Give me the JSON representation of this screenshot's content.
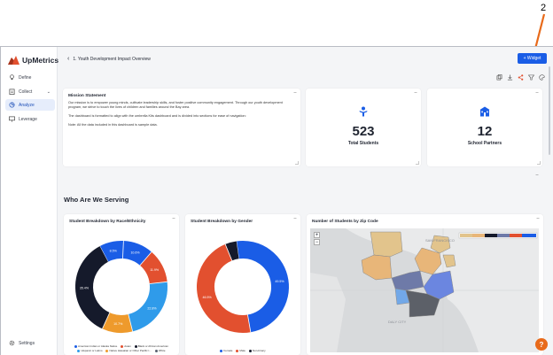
{
  "callout_number": "2",
  "brand": {
    "name": "UpMetrics",
    "accent": "#e2502f"
  },
  "sidebar": {
    "items": [
      {
        "label": "Define",
        "icon": "lightbulb-icon"
      },
      {
        "label": "Collect",
        "icon": "clipboard-icon",
        "chevron": "⌄"
      },
      {
        "label": "Analyze",
        "icon": "chart-icon",
        "active": true
      },
      {
        "label": "Leverage",
        "icon": "presentation-icon"
      }
    ],
    "settings_label": "Settings"
  },
  "header": {
    "back_glyph": "‹",
    "breadcrumb": "1. Youth Development Impact Overview",
    "widget_button": "+ Widget",
    "toolbar_icons": [
      "copy-icon",
      "download-icon",
      "share-icon",
      "filter-icon",
      "palette-icon"
    ]
  },
  "mission": {
    "title": "Mission Statement",
    "paragraphs": [
      "Our mission is to empower young minds, cultivate leadership skills, and foster positive community engagement. Through our youth development program, we strive to touch the lives of children and families around the Bay area.",
      "The dashboard is formatted to align with the umbrella Kits dashboard and is divided into sections for ease of navigation:",
      "Note: All the data included in this dashboard is sample data."
    ]
  },
  "kpis": [
    {
      "value": "523",
      "label": "Total Students",
      "icon": "student-icon"
    },
    {
      "value": "12",
      "label": "School Partners",
      "icon": "school-icon"
    }
  ],
  "section_title": "Who Are We Serving",
  "charts": {
    "race": {
      "title": "Student Breakdown by Race/Ethnicity",
      "legend": [
        "American Indian or Alaska Native",
        "Asian",
        "Black or African American",
        "Hispanic or Latino",
        "Native Hawaiian or Other Pacific I...",
        "White"
      ]
    },
    "gender": {
      "title": "Student Breakdown by Gender",
      "legend": [
        "Female",
        "Male",
        "Non-binary"
      ]
    },
    "zip": {
      "title": "Number of Students by Zip Code",
      "zoom_in": "+",
      "zoom_out": "−",
      "place_labels": [
        "SAN FRANCISCO",
        "DALY CITY"
      ]
    }
  },
  "chart_data": [
    {
      "type": "pie",
      "title": "Student Breakdown by Race/Ethnicity",
      "categories": [
        "American Indian or Alaska Native",
        "Asian",
        "Black or African American",
        "Hispanic or Latino",
        "Native Hawaiian or Other Pacific I...",
        "White"
      ],
      "values": [
        8.5,
        10.6,
        11.9,
        22.8,
        10.7,
        35.4
      ],
      "value_labels": [
        "8.5%",
        "10.6%",
        "11.9%",
        "22.8%",
        "10.7%",
        "35.4%"
      ],
      "colors": [
        "#1a5de6",
        "#1a5de6",
        "#e2502f",
        "#2f9bea",
        "#ee9a2c",
        "#151a2b"
      ],
      "donut": true
    },
    {
      "type": "pie",
      "title": "Student Breakdown by Gender",
      "categories": [
        "Female",
        "Male",
        "Non-binary"
      ],
      "values": [
        49.5,
        46.5,
        4
      ],
      "value_labels": [
        "49.5%",
        "46.5%",
        ""
      ],
      "colors": [
        "#1a5de6",
        "#e2502f",
        "#151a2b"
      ],
      "donut": true
    }
  ],
  "help_label": "?"
}
